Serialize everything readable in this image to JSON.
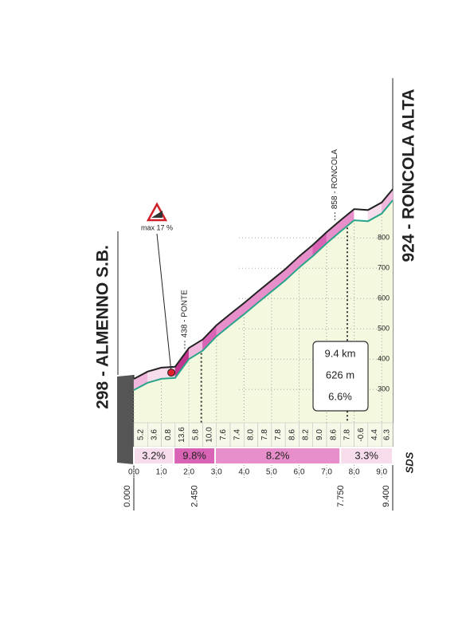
{
  "chart_data": {
    "type": "elevation_profile",
    "start_label": "298 - ALMENNO S.B.",
    "finish_label": "924 - RONCOLA ALTA",
    "x": [
      0,
      0.5,
      1.0,
      1.5,
      2.0,
      2.5,
      3.0,
      3.5,
      4.0,
      4.5,
      5.0,
      5.5,
      6.0,
      6.5,
      7.0,
      7.5,
      8.0,
      8.5,
      9.0,
      9.4
    ],
    "elevation": [
      298,
      322,
      335,
      338,
      400,
      428,
      475,
      512,
      548,
      586,
      623,
      660,
      702,
      740,
      782,
      821,
      858,
      855,
      880,
      924
    ],
    "segment_gradients": {
      "values": [
        5.2,
        3.6,
        0.8,
        13.6,
        5.8,
        10.0,
        7.6,
        7.4,
        8.0,
        7.8,
        7.8,
        8.6,
        8.2,
        9.0,
        8.6,
        7.8,
        -0.6,
        4.4,
        6.3
      ],
      "value_labels": [
        "5.2",
        "3.6",
        "0.8",
        "13.6",
        "5.8",
        "10.0",
        "7.6",
        "7.4",
        "8.0",
        "7.8",
        "7.8",
        "8.6",
        "8.2",
        "9.0",
        "8.6",
        "7.8",
        "-0.6",
        "4.4",
        "6.3"
      ]
    },
    "sectors": [
      {
        "label": "3.2%",
        "value": 3.2,
        "start": 0,
        "end": 1.45
      },
      {
        "label": "9.8%",
        "value": 9.8,
        "start": 1.45,
        "end": 2.95
      },
      {
        "label": "8.2%",
        "value": 8.2,
        "start": 2.95,
        "end": 7.5
      },
      {
        "label": "3.3%",
        "value": 3.3,
        "start": 7.5,
        "end": 9.4
      }
    ],
    "xlim": [
      0,
      9.4
    ],
    "xticks": [
      {
        "value": 0,
        "label": "0.0"
      },
      {
        "value": 1,
        "label": "1.0"
      },
      {
        "value": 2,
        "label": "2.0"
      },
      {
        "value": 3,
        "label": "3.0"
      },
      {
        "value": 4,
        "label": "4.0"
      },
      {
        "value": 5,
        "label": "5.0"
      },
      {
        "value": 6,
        "label": "6.0"
      },
      {
        "value": 7,
        "label": "7.0"
      },
      {
        "value": 8,
        "label": "8.0"
      },
      {
        "value": 9,
        "label": "9.0"
      }
    ],
    "ylim": [
      190,
      960
    ],
    "yticks": [
      300,
      400,
      500,
      600,
      700,
      800
    ],
    "markers": [
      {
        "value": 0,
        "label": "0.000"
      },
      {
        "value": 2.45,
        "label": "2.450"
      },
      {
        "value": 7.75,
        "label": "7.750"
      },
      {
        "value": 9.4,
        "label": "9.400"
      }
    ],
    "annotations": [
      {
        "text": "438 - PONTE",
        "x": 1.85
      },
      {
        "text": "858 - RONCOLA",
        "x": 7.3
      }
    ],
    "max_gradient": {
      "label": "max 17 %",
      "value": 17,
      "x": 1.36
    },
    "summary": {
      "length": "9.4 km",
      "gain": "626 m",
      "gradient": "6.6%"
    },
    "logo": "SDS"
  }
}
